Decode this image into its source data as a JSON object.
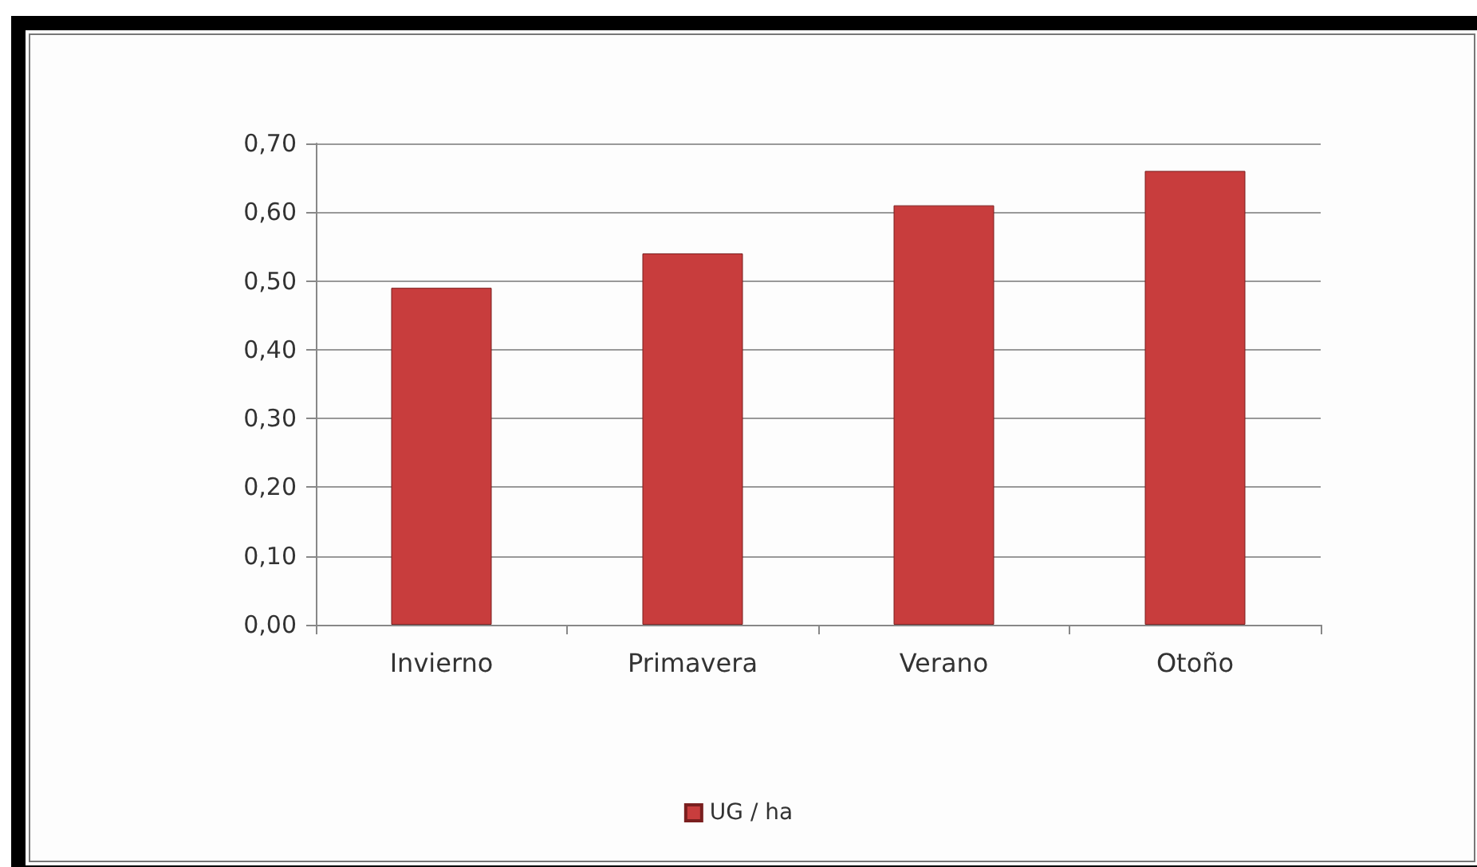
{
  "chart_data": {
    "type": "bar",
    "categories": [
      "Invierno",
      "Primavera",
      "Verano",
      "Otoño"
    ],
    "series": [
      {
        "name": "UG / ha",
        "color": "#c83d3d",
        "values": [
          0.49,
          0.54,
          0.61,
          0.66
        ]
      }
    ],
    "ylim": [
      0,
      0.7
    ],
    "yticks": [
      {
        "value": 0,
        "label": "0,00"
      },
      {
        "value": 0.1,
        "label": "0,10"
      },
      {
        "value": 0.2,
        "label": "0,20"
      },
      {
        "value": 0.3,
        "label": "0,30"
      },
      {
        "value": 0.4,
        "label": "0,40"
      },
      {
        "value": 0.5,
        "label": "0,50"
      },
      {
        "value": 0.6,
        "label": "0,60"
      },
      {
        "value": 0.7,
        "label": "0,70"
      }
    ],
    "grid": "y",
    "legend": "bottom"
  }
}
